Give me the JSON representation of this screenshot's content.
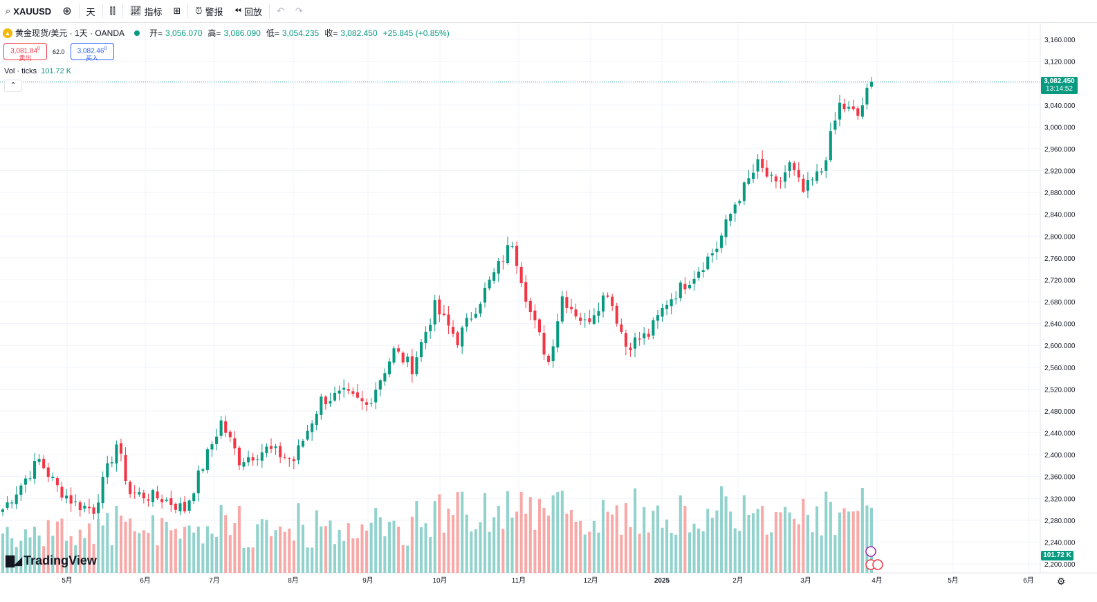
{
  "toolbar": {
    "symbol": "XAUUSD",
    "interval": "天",
    "indicators": "指标",
    "alert": "警报",
    "replay": "回放"
  },
  "legend": {
    "instrument": "黄金现货/美元 · 1天 · OANDA",
    "open_label": "开=",
    "open": "3,056.070",
    "high_label": "高=",
    "high": "3,086.090",
    "low_label": "低=",
    "low": "3,054.235",
    "close_label": "收=",
    "close": "3,082.450",
    "change": "+25.845 (+0.85%)"
  },
  "trade": {
    "sell_price": "3,081.84",
    "sell_sup": "0",
    "sell_label": "卖出",
    "spread": "62.0",
    "buy_price": "3,082.46",
    "buy_sup": "0",
    "buy_label": "买入"
  },
  "volume": {
    "label": "Vol · ticks",
    "value": "101.72 K"
  },
  "price_badge": {
    "price": "3,082.450",
    "countdown": "13:14:52"
  },
  "volume_badge": "101.72 K",
  "logo": "TradingView",
  "colors": {
    "up": "#089981",
    "down": "#f23645",
    "vol_up": "#92d2cc",
    "vol_down": "#f7a9a7"
  },
  "chart_data": {
    "type": "candlestick",
    "yticks": [
      "3,160.000",
      "3,120.000",
      "3,080.000",
      "3,040.000",
      "3,000.000",
      "2,960.000",
      "2,920.000",
      "2,880.000",
      "2,840.000",
      "2,800.000",
      "2,760.000",
      "2,720.000",
      "2,680.000",
      "2,640.000",
      "2,600.000",
      "2,560.000",
      "2,520.000",
      "2,480.000",
      "2,440.000",
      "2,400.000",
      "2,360.000",
      "2,320.000",
      "2,280.000",
      "2,240.000",
      "2,200.000"
    ],
    "ylim": [
      2190,
      3170
    ],
    "xticks": [
      "5月",
      "6月",
      "7月",
      "8月",
      "9月",
      "10月",
      "11月",
      "12月",
      "2025",
      "2月",
      "3月",
      "4月",
      "5月",
      "6月"
    ],
    "last_price": 3082.45,
    "keypoints": [
      [
        0,
        2300
      ],
      [
        8,
        2390
      ],
      [
        12,
        2340
      ],
      [
        16,
        2310
      ],
      [
        20,
        2300
      ],
      [
        25,
        2420
      ],
      [
        28,
        2330
      ],
      [
        35,
        2320
      ],
      [
        40,
        2300
      ],
      [
        48,
        2460
      ],
      [
        52,
        2390
      ],
      [
        58,
        2410
      ],
      [
        64,
        2390
      ],
      [
        70,
        2500
      ],
      [
        75,
        2510
      ],
      [
        80,
        2490
      ],
      [
        86,
        2590
      ],
      [
        90,
        2560
      ],
      [
        95,
        2670
      ],
      [
        100,
        2610
      ],
      [
        108,
        2730
      ],
      [
        112,
        2790
      ],
      [
        116,
        2660
      ],
      [
        120,
        2570
      ],
      [
        123,
        2690
      ],
      [
        128,
        2640
      ],
      [
        133,
        2700
      ],
      [
        137,
        2600
      ],
      [
        142,
        2620
      ],
      [
        146,
        2680
      ],
      [
        152,
        2730
      ],
      [
        157,
        2780
      ],
      [
        161,
        2860
      ],
      [
        166,
        2930
      ],
      [
        170,
        2890
      ],
      [
        173,
        2930
      ],
      [
        176,
        2880
      ],
      [
        180,
        2920
      ],
      [
        184,
        3040
      ],
      [
        188,
        3020
      ],
      [
        191,
        3082.45
      ]
    ],
    "volume_ylim": [
      0,
      200000
    ]
  }
}
